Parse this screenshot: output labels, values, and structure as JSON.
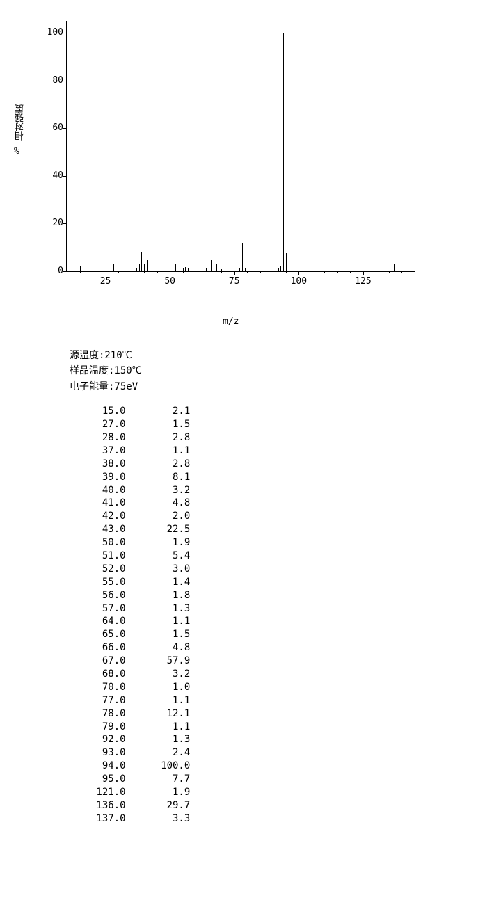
{
  "chart": {
    "type": "mass_spectrum",
    "y_label": "相对强度",
    "percent_label": "%",
    "x_label": "m/z",
    "background_color": "#ffffff",
    "peak_color": "#000000",
    "axis_color": "#000000",
    "y_ticks": [
      0,
      20,
      40,
      60,
      80,
      100
    ],
    "x_ticks": [
      25,
      50,
      75,
      100,
      125
    ],
    "x_min": 10,
    "x_max": 145,
    "y_min": 0,
    "y_max": 105,
    "label_fontsize": 13,
    "tick_fontsize": 13,
    "peaks": [
      {
        "mz": 15.0,
        "intensity": 2.1
      },
      {
        "mz": 27.0,
        "intensity": 1.5
      },
      {
        "mz": 28.0,
        "intensity": 2.8
      },
      {
        "mz": 37.0,
        "intensity": 1.1
      },
      {
        "mz": 38.0,
        "intensity": 2.8
      },
      {
        "mz": 39.0,
        "intensity": 8.1
      },
      {
        "mz": 40.0,
        "intensity": 3.2
      },
      {
        "mz": 41.0,
        "intensity": 4.8
      },
      {
        "mz": 42.0,
        "intensity": 2.0
      },
      {
        "mz": 43.0,
        "intensity": 22.5
      },
      {
        "mz": 50.0,
        "intensity": 1.9
      },
      {
        "mz": 51.0,
        "intensity": 5.4
      },
      {
        "mz": 52.0,
        "intensity": 3.0
      },
      {
        "mz": 55.0,
        "intensity": 1.4
      },
      {
        "mz": 56.0,
        "intensity": 1.8
      },
      {
        "mz": 57.0,
        "intensity": 1.3
      },
      {
        "mz": 64.0,
        "intensity": 1.1
      },
      {
        "mz": 65.0,
        "intensity": 1.5
      },
      {
        "mz": 66.0,
        "intensity": 4.8
      },
      {
        "mz": 67.0,
        "intensity": 57.9
      },
      {
        "mz": 68.0,
        "intensity": 3.2
      },
      {
        "mz": 70.0,
        "intensity": 1.0
      },
      {
        "mz": 77.0,
        "intensity": 1.1
      },
      {
        "mz": 78.0,
        "intensity": 12.1
      },
      {
        "mz": 79.0,
        "intensity": 1.1
      },
      {
        "mz": 92.0,
        "intensity": 1.3
      },
      {
        "mz": 93.0,
        "intensity": 2.4
      },
      {
        "mz": 94.0,
        "intensity": 100.0
      },
      {
        "mz": 95.0,
        "intensity": 7.7
      },
      {
        "mz": 121.0,
        "intensity": 1.9
      },
      {
        "mz": 136.0,
        "intensity": 29.7
      },
      {
        "mz": 137.0,
        "intensity": 3.3
      }
    ]
  },
  "meta": {
    "source_temp_label": "源温度:210℃",
    "sample_temp_label": "样品温度:150℃",
    "electron_energy_label": "电子能量:75eV"
  },
  "table": {
    "col1_width": 6,
    "col2_width": 8,
    "rows": [
      [
        "15.0",
        "2.1"
      ],
      [
        "27.0",
        "1.5"
      ],
      [
        "28.0",
        "2.8"
      ],
      [
        "37.0",
        "1.1"
      ],
      [
        "38.0",
        "2.8"
      ],
      [
        "39.0",
        "8.1"
      ],
      [
        "40.0",
        "3.2"
      ],
      [
        "41.0",
        "4.8"
      ],
      [
        "42.0",
        "2.0"
      ],
      [
        "43.0",
        "22.5"
      ],
      [
        "50.0",
        "1.9"
      ],
      [
        "51.0",
        "5.4"
      ],
      [
        "52.0",
        "3.0"
      ],
      [
        "55.0",
        "1.4"
      ],
      [
        "56.0",
        "1.8"
      ],
      [
        "57.0",
        "1.3"
      ],
      [
        "64.0",
        "1.1"
      ],
      [
        "65.0",
        "1.5"
      ],
      [
        "66.0",
        "4.8"
      ],
      [
        "67.0",
        "57.9"
      ],
      [
        "68.0",
        "3.2"
      ],
      [
        "70.0",
        "1.0"
      ],
      [
        "77.0",
        "1.1"
      ],
      [
        "78.0",
        "12.1"
      ],
      [
        "79.0",
        "1.1"
      ],
      [
        "92.0",
        "1.3"
      ],
      [
        "93.0",
        "2.4"
      ],
      [
        "94.0",
        "100.0"
      ],
      [
        "95.0",
        "7.7"
      ],
      [
        "121.0",
        "1.9"
      ],
      [
        "136.0",
        "29.7"
      ],
      [
        "137.0",
        "3.3"
      ]
    ]
  }
}
